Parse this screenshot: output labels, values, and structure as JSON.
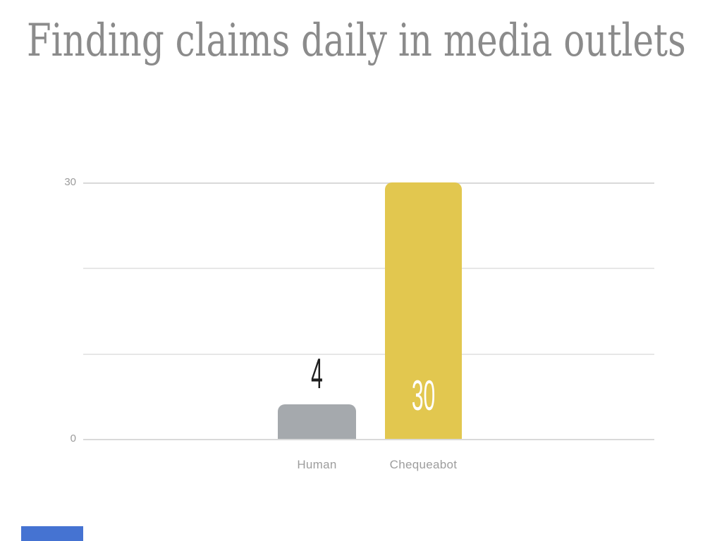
{
  "title": "Finding claims daily in media outlets",
  "chart_data": {
    "type": "bar",
    "title": "Finding claims daily in media outlets",
    "categories": [
      "Human",
      "Chequeabot"
    ],
    "values": [
      4,
      30
    ],
    "value_labels": [
      "4",
      "30"
    ],
    "value_label_placement": [
      "above-bar",
      "inside-bar"
    ],
    "value_label_colors": [
      "#1f1f1f",
      "#ffffff"
    ],
    "bar_colors": [
      "#a5a9ad",
      "#e2c74f"
    ],
    "xlabel": "",
    "ylabel": "",
    "ylim": [
      0,
      30
    ],
    "yticks": [
      0,
      10,
      20,
      30
    ],
    "ytick_labels_visible": [
      "0",
      "30"
    ],
    "grid": "horizontal",
    "legend": "none",
    "title_color": "#8b8b8b",
    "axis_label_color": "#9b9b9b"
  },
  "decor": {
    "bottom_left_accent_color": "#4573d2"
  }
}
